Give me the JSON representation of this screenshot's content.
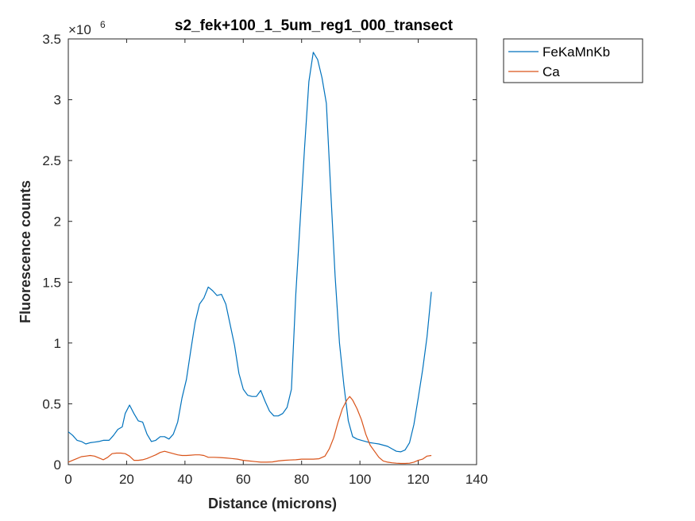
{
  "chart_data": {
    "type": "line",
    "title": "s2_fek+100_1_5um_reg1_000_transect",
    "xlabel": "Distance (microns)",
    "ylabel": "Fluorescence counts",
    "exponent_base": "×10",
    "exponent_power": "6",
    "xlim": [
      0,
      140
    ],
    "ylim": [
      0,
      3.5
    ],
    "xticks": [
      0,
      20,
      40,
      60,
      80,
      100,
      120,
      140
    ],
    "yticks": [
      0,
      0.5,
      1,
      1.5,
      2,
      2.5,
      3,
      3.5
    ],
    "xtick_labels": [
      "0",
      "20",
      "40",
      "60",
      "80",
      "100",
      "120",
      "140"
    ],
    "ytick_labels": [
      "0",
      "0.5",
      "1",
      "1.5",
      "2",
      "2.5",
      "3",
      "3.5"
    ],
    "legend_position": "outside-top-right",
    "grid": false,
    "series": [
      {
        "name": "FeKaMnKb",
        "color": "#0072BD",
        "points": [
          [
            0,
            0.27
          ],
          [
            1.5,
            0.24
          ],
          [
            3,
            0.2
          ],
          [
            4.5,
            0.19
          ],
          [
            6,
            0.17
          ],
          [
            7.5,
            0.18
          ],
          [
            9,
            0.185
          ],
          [
            10.5,
            0.19
          ],
          [
            12,
            0.2
          ],
          [
            14,
            0.2
          ],
          [
            15.5,
            0.24
          ],
          [
            17,
            0.29
          ],
          [
            18.5,
            0.31
          ],
          [
            19.5,
            0.42
          ],
          [
            21,
            0.49
          ],
          [
            22.5,
            0.42
          ],
          [
            24,
            0.36
          ],
          [
            25.5,
            0.35
          ],
          [
            27,
            0.25
          ],
          [
            28.5,
            0.19
          ],
          [
            30,
            0.2
          ],
          [
            31.5,
            0.23
          ],
          [
            33,
            0.23
          ],
          [
            34.5,
            0.21
          ],
          [
            36,
            0.25
          ],
          [
            37.5,
            0.35
          ],
          [
            39,
            0.55
          ],
          [
            40.5,
            0.7
          ],
          [
            42,
            0.94
          ],
          [
            43.5,
            1.17
          ],
          [
            45,
            1.32
          ],
          [
            46.5,
            1.37
          ],
          [
            48,
            1.46
          ],
          [
            49.5,
            1.43
          ],
          [
            51,
            1.39
          ],
          [
            52.5,
            1.4
          ],
          [
            54,
            1.32
          ],
          [
            55.5,
            1.15
          ],
          [
            57,
            0.98
          ],
          [
            58.5,
            0.75
          ],
          [
            60,
            0.62
          ],
          [
            61.5,
            0.57
          ],
          [
            63,
            0.56
          ],
          [
            64.5,
            0.56
          ],
          [
            66,
            0.61
          ],
          [
            67.5,
            0.52
          ],
          [
            69,
            0.44
          ],
          [
            70.5,
            0.4
          ],
          [
            72,
            0.4
          ],
          [
            73.5,
            0.42
          ],
          [
            75,
            0.47
          ],
          [
            76.5,
            0.62
          ],
          [
            78,
            1.4
          ],
          [
            79.5,
            2.0
          ],
          [
            81,
            2.6
          ],
          [
            82.5,
            3.15
          ],
          [
            84,
            3.39
          ],
          [
            85.5,
            3.33
          ],
          [
            87,
            3.18
          ],
          [
            88.5,
            2.97
          ],
          [
            90,
            2.25
          ],
          [
            91.5,
            1.55
          ],
          [
            93,
            1.0
          ],
          [
            94.5,
            0.65
          ],
          [
            96,
            0.36
          ],
          [
            97.5,
            0.23
          ],
          [
            99,
            0.21
          ],
          [
            100.5,
            0.2
          ],
          [
            102,
            0.19
          ],
          [
            103.5,
            0.18
          ],
          [
            105,
            0.175
          ],
          [
            106.5,
            0.17
          ],
          [
            108,
            0.16
          ],
          [
            109.5,
            0.15
          ],
          [
            111,
            0.13
          ],
          [
            112.5,
            0.11
          ],
          [
            114,
            0.105
          ],
          [
            115.5,
            0.12
          ],
          [
            117,
            0.18
          ],
          [
            118.5,
            0.33
          ],
          [
            120,
            0.55
          ],
          [
            121.5,
            0.78
          ],
          [
            123,
            1.05
          ],
          [
            124.5,
            1.42
          ]
        ]
      },
      {
        "name": "Ca",
        "color": "#D95319",
        "points": [
          [
            0,
            0.02
          ],
          [
            1.5,
            0.035
          ],
          [
            3,
            0.05
          ],
          [
            4.5,
            0.065
          ],
          [
            6,
            0.07
          ],
          [
            7.5,
            0.075
          ],
          [
            9,
            0.07
          ],
          [
            10.5,
            0.055
          ],
          [
            12,
            0.04
          ],
          [
            13.5,
            0.06
          ],
          [
            15,
            0.09
          ],
          [
            16.5,
            0.095
          ],
          [
            18,
            0.095
          ],
          [
            19.5,
            0.09
          ],
          [
            21,
            0.07
          ],
          [
            22.5,
            0.035
          ],
          [
            24,
            0.035
          ],
          [
            25.5,
            0.04
          ],
          [
            27,
            0.05
          ],
          [
            28.5,
            0.065
          ],
          [
            30,
            0.08
          ],
          [
            31.5,
            0.1
          ],
          [
            33,
            0.11
          ],
          [
            34.5,
            0.1
          ],
          [
            36,
            0.09
          ],
          [
            37.5,
            0.08
          ],
          [
            39,
            0.075
          ],
          [
            40.5,
            0.075
          ],
          [
            42,
            0.078
          ],
          [
            43.5,
            0.08
          ],
          [
            45,
            0.08
          ],
          [
            46.5,
            0.075
          ],
          [
            48,
            0.06
          ],
          [
            50,
            0.06
          ],
          [
            52,
            0.058
          ],
          [
            54,
            0.055
          ],
          [
            56,
            0.05
          ],
          [
            58,
            0.045
          ],
          [
            60,
            0.035
          ],
          [
            62,
            0.03
          ],
          [
            64,
            0.025
          ],
          [
            66,
            0.02
          ],
          [
            68,
            0.02
          ],
          [
            70,
            0.022
          ],
          [
            72,
            0.03
          ],
          [
            74,
            0.035
          ],
          [
            76,
            0.038
          ],
          [
            78,
            0.04
          ],
          [
            80,
            0.045
          ],
          [
            82,
            0.045
          ],
          [
            84,
            0.045
          ],
          [
            86,
            0.048
          ],
          [
            88,
            0.07
          ],
          [
            89.5,
            0.13
          ],
          [
            91,
            0.22
          ],
          [
            92.5,
            0.35
          ],
          [
            94,
            0.46
          ],
          [
            95.5,
            0.53
          ],
          [
            96.5,
            0.56
          ],
          [
            97.5,
            0.53
          ],
          [
            99,
            0.46
          ],
          [
            100.5,
            0.37
          ],
          [
            102,
            0.25
          ],
          [
            103.5,
            0.16
          ],
          [
            105,
            0.11
          ],
          [
            106.5,
            0.06
          ],
          [
            108,
            0.03
          ],
          [
            109.5,
            0.02
          ],
          [
            111,
            0.015
          ],
          [
            112.5,
            0.012
          ],
          [
            114,
            0.01
          ],
          [
            115.5,
            0.01
          ],
          [
            117,
            0.012
          ],
          [
            118.5,
            0.02
          ],
          [
            120,
            0.035
          ],
          [
            121.5,
            0.045
          ],
          [
            123,
            0.07
          ],
          [
            124.5,
            0.075
          ]
        ]
      }
    ]
  }
}
